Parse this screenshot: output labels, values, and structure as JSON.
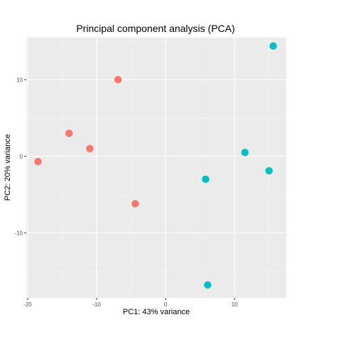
{
  "chart_data": {
    "type": "scatter",
    "title": "Principal component analysis (PCA)",
    "xlabel": "PC1: 43% variance",
    "ylabel": "PC2: 20% variance",
    "xlim": [
      -20.2,
      17.5
    ],
    "ylim": [
      -18.5,
      15.5
    ],
    "x_ticks": [
      -20,
      -10,
      0,
      10
    ],
    "y_ticks": [
      -10,
      0,
      10
    ],
    "x_tick_labels": [
      "-20",
      "-10",
      "0",
      "10"
    ],
    "y_tick_labels": [
      "-10",
      "0",
      "10"
    ],
    "grid": true,
    "legend": "none",
    "series": [
      {
        "color": "#F8766D",
        "points": [
          {
            "x": -18.5,
            "y": -0.7
          },
          {
            "x": -14.0,
            "y": 3.0
          },
          {
            "x": -11.0,
            "y": 1.0
          },
          {
            "x": -6.9,
            "y": 10.0
          },
          {
            "x": -4.4,
            "y": -6.2
          }
        ]
      },
      {
        "color": "#00BFC4",
        "points": [
          {
            "x": 5.8,
            "y": -3.0
          },
          {
            "x": 6.1,
            "y": -16.8
          },
          {
            "x": 11.5,
            "y": 0.5
          },
          {
            "x": 15.0,
            "y": -1.9
          },
          {
            "x": 15.6,
            "y": 14.4
          }
        ]
      }
    ]
  }
}
